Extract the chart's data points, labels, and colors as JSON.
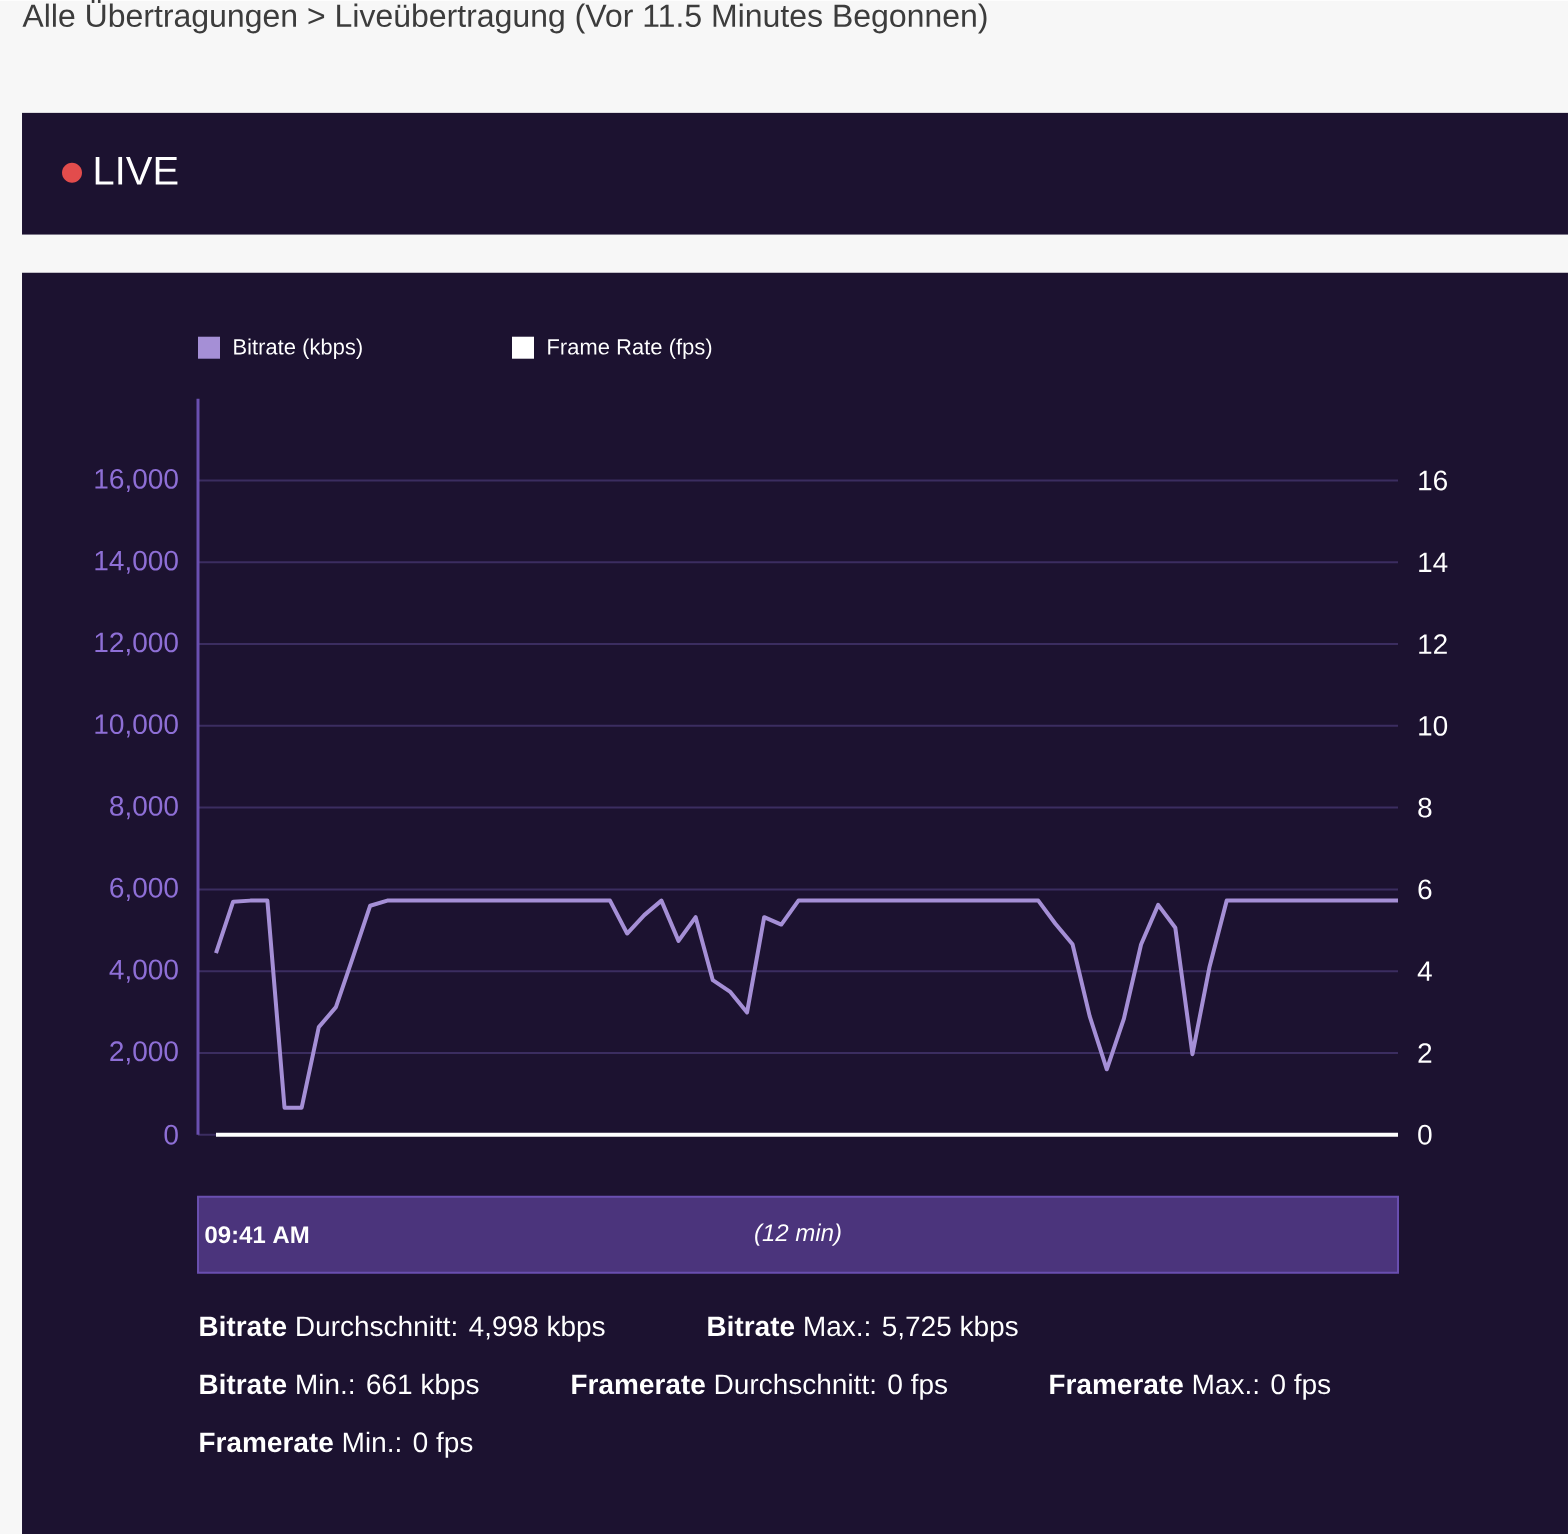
{
  "chart_data": {
    "type": "line",
    "title": "Alle Übertragungen > Liveübertragung (Vor 11.5 Minutes Begonnen)",
    "subtitle": "LIVE",
    "categories": [
      null,
      null,
      null,
      null,
      null,
      null,
      null,
      null,
      null,
      null,
      null,
      null,
      null,
      null,
      null,
      null,
      null,
      null,
      null,
      null,
      null,
      null,
      null,
      null,
      null,
      null,
      null,
      null,
      null,
      null,
      null,
      null,
      null,
      null,
      null,
      null,
      null,
      null,
      null,
      null,
      null,
      null,
      null,
      null,
      null,
      null,
      null,
      null,
      null,
      null,
      null,
      null,
      null,
      null,
      null,
      null,
      null,
      null,
      null,
      null,
      null,
      null,
      null,
      null,
      null,
      null,
      null,
      null,
      null,
      null
    ],
    "series": [
      {
        "name": "Bitrate (kbps)",
        "color": "#a58fd6",
        "values": [
          4440,
          5700,
          5725,
          5725,
          661,
          661,
          2630,
          3120,
          4350,
          5600,
          5725,
          5725,
          5725,
          5725,
          5725,
          5725,
          5725,
          5725,
          5725,
          5725,
          5725,
          5725,
          5725,
          5725,
          4920,
          5370,
          5725,
          4740,
          5320,
          3780,
          3500,
          2990,
          5320,
          5140,
          5725,
          5725,
          5725,
          5725,
          5725,
          5725,
          5725,
          5725,
          5725,
          5725,
          5725,
          5725,
          5725,
          5725,
          5725,
          5160,
          4660,
          2900,
          1600,
          2840,
          4650,
          5620,
          5060,
          1970,
          4110,
          5725,
          5725,
          5725,
          5725,
          5725,
          5725,
          5725,
          5725,
          5725,
          5725,
          5725
        ]
      },
      {
        "name": "Frame Rate (fps)",
        "color": "#ffffff",
        "axis": "y2",
        "values": [
          0,
          0,
          0,
          0,
          0,
          0,
          0,
          0,
          0,
          0,
          0,
          0,
          0,
          0,
          0,
          0,
          0,
          0,
          0,
          0,
          0,
          0,
          0,
          0,
          0,
          0,
          0,
          0,
          0,
          0,
          0,
          0,
          0,
          0,
          0,
          0,
          0,
          0,
          0,
          0,
          0,
          0,
          0,
          0,
          0,
          0,
          0,
          0,
          0,
          0,
          0,
          0,
          0,
          0,
          0,
          0,
          0,
          0,
          0,
          0,
          0,
          0,
          0,
          0,
          0,
          0,
          0,
          0,
          0,
          0
        ]
      }
    ],
    "ylim": [
      0,
      18000
    ],
    "yticks": [
      {
        "value": 0,
        "label": "0"
      },
      {
        "value": 2000,
        "label": "2,000"
      },
      {
        "value": 4000,
        "label": "4,000"
      },
      {
        "value": 6000,
        "label": "6,000"
      },
      {
        "value": 8000,
        "label": "8,000"
      },
      {
        "value": 10000,
        "label": "10,000"
      },
      {
        "value": 12000,
        "label": "12,000"
      },
      {
        "value": 14000,
        "label": "14,000"
      },
      {
        "value": 16000,
        "label": "16,000"
      }
    ],
    "y2lim": [
      0,
      18
    ],
    "y2ticks": [
      0,
      2,
      4,
      6,
      8,
      10,
      12,
      14,
      16
    ],
    "grid": "y",
    "legend": "top left",
    "marker": "none",
    "line_style": "solid",
    "annotations": [
      "09:41 AM",
      "*(12 min)*",
      "**Bitrate** Durchschnitt: 4,998 kbps",
      "**Bitrate** Max.: 5,725 kbps",
      "**Bitrate** Min.: 661 kbps",
      "**Framerate** Durchschnitt: 0 fps",
      "**Framerate** Max.: 0 fps",
      "**Framerate** Min.: 0 fps"
    ]
  }
}
